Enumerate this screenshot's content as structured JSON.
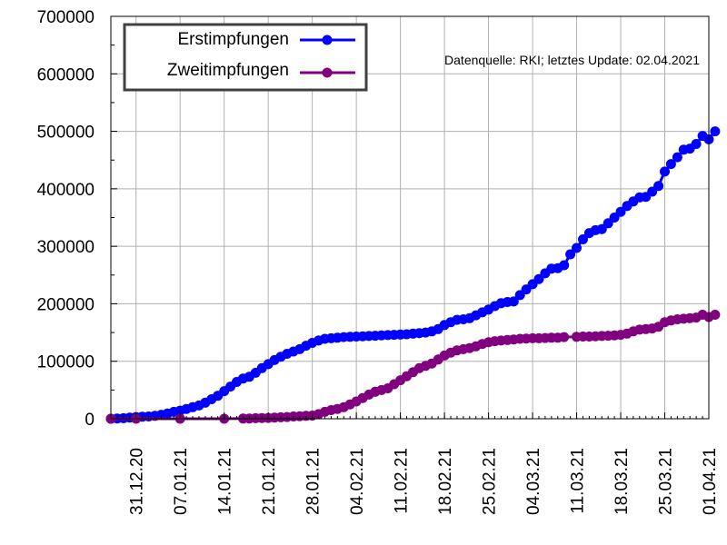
{
  "chart_data": {
    "type": "line",
    "title": "",
    "xlabel": "",
    "ylabel": "",
    "source_note": "Datenquelle: RKI; letztes Update: 02.04.2021",
    "x_start": "2020-12-27",
    "x_end": "2021-04-01",
    "ylim": [
      0,
      700000
    ],
    "y_ticks": [
      0,
      100000,
      200000,
      300000,
      400000,
      500000,
      600000,
      700000
    ],
    "y_tick_labels": [
      "0",
      "100000",
      "200000",
      "300000",
      "400000",
      "500000",
      "600000",
      "700000"
    ],
    "x_ticks": [
      "2020-12-31",
      "2021-01-07",
      "2021-01-14",
      "2021-01-21",
      "2021-01-28",
      "2021-02-04",
      "2021-02-11",
      "2021-02-18",
      "2021-02-25",
      "2021-03-04",
      "2021-03-11",
      "2021-03-18",
      "2021-03-25",
      "2021-04-01"
    ],
    "x_tick_labels": [
      "31.12.20",
      "07.01.21",
      "14.01.21",
      "21.01.21",
      "28.01.21",
      "04.02.21",
      "11.02.21",
      "18.02.21",
      "25.02.21",
      "04.03.21",
      "11.03.21",
      "18.03.21",
      "25.03.21",
      "01.04.21"
    ],
    "grid": true,
    "legend_position": "top-left",
    "series": [
      {
        "name": "Erstimpfungen",
        "color": "#0000ff",
        "points": [
          [
            "2020-12-27",
            0
          ],
          [
            "2020-12-28",
            500
          ],
          [
            "2020-12-29",
            1000
          ],
          [
            "2020-12-30",
            2000
          ],
          [
            "2020-12-31",
            3000
          ],
          [
            "2021-01-01",
            3500
          ],
          [
            "2021-01-02",
            4000
          ],
          [
            "2021-01-03",
            5000
          ],
          [
            "2021-01-04",
            7000
          ],
          [
            "2021-01-05",
            9000
          ],
          [
            "2021-01-06",
            12000
          ],
          [
            "2021-01-07",
            14000
          ],
          [
            "2021-01-08",
            17000
          ],
          [
            "2021-01-09",
            20000
          ],
          [
            "2021-01-10",
            23000
          ],
          [
            "2021-01-11",
            28000
          ],
          [
            "2021-01-12",
            34000
          ],
          [
            "2021-01-13",
            40000
          ],
          [
            "2021-01-14",
            48000
          ],
          [
            "2021-01-15",
            56000
          ],
          [
            "2021-01-16",
            64000
          ],
          [
            "2021-01-17",
            70000
          ],
          [
            "2021-01-18",
            73000
          ],
          [
            "2021-01-19",
            80000
          ],
          [
            "2021-01-20",
            88000
          ],
          [
            "2021-01-21",
            95000
          ],
          [
            "2021-01-22",
            102000
          ],
          [
            "2021-01-23",
            108000
          ],
          [
            "2021-01-24",
            113000
          ],
          [
            "2021-01-25",
            117000
          ],
          [
            "2021-01-26",
            121000
          ],
          [
            "2021-01-27",
            127000
          ],
          [
            "2021-01-28",
            132000
          ],
          [
            "2021-01-29",
            136000
          ],
          [
            "2021-01-30",
            139000
          ],
          [
            "2021-01-31",
            140000
          ],
          [
            "2021-02-01",
            141000
          ],
          [
            "2021-02-02",
            142000
          ],
          [
            "2021-02-03",
            142500
          ],
          [
            "2021-02-04",
            143000
          ],
          [
            "2021-02-05",
            143500
          ],
          [
            "2021-02-06",
            144000
          ],
          [
            "2021-02-07",
            144500
          ],
          [
            "2021-02-08",
            145000
          ],
          [
            "2021-02-09",
            145500
          ],
          [
            "2021-02-10",
            146000
          ],
          [
            "2021-02-11",
            146500
          ],
          [
            "2021-02-12",
            147000
          ],
          [
            "2021-02-13",
            148000
          ],
          [
            "2021-02-14",
            149000
          ],
          [
            "2021-02-15",
            150000
          ],
          [
            "2021-02-16",
            152000
          ],
          [
            "2021-02-17",
            156000
          ],
          [
            "2021-02-18",
            163000
          ],
          [
            "2021-02-19",
            168000
          ],
          [
            "2021-02-20",
            172000
          ],
          [
            "2021-02-21",
            173000
          ],
          [
            "2021-02-22",
            175000
          ],
          [
            "2021-02-23",
            180000
          ],
          [
            "2021-02-24",
            185000
          ],
          [
            "2021-02-25",
            190000
          ],
          [
            "2021-02-26",
            196000
          ],
          [
            "2021-02-27",
            201000
          ],
          [
            "2021-02-28",
            203000
          ],
          [
            "2021-03-01",
            204000
          ],
          [
            "2021-03-02",
            215000
          ],
          [
            "2021-03-03",
            225000
          ],
          [
            "2021-03-04",
            234000
          ],
          [
            "2021-03-05",
            243000
          ],
          [
            "2021-03-06",
            253000
          ],
          [
            "2021-03-07",
            261000
          ],
          [
            "2021-03-08",
            262000
          ],
          [
            "2021-03-09",
            267000
          ],
          [
            "2021-03-10",
            286000
          ],
          [
            "2021-03-11",
            297000
          ],
          [
            "2021-03-12",
            312000
          ],
          [
            "2021-03-13",
            323000
          ],
          [
            "2021-03-14",
            328000
          ],
          [
            "2021-03-15",
            330000
          ],
          [
            "2021-03-16",
            340000
          ],
          [
            "2021-03-17",
            350000
          ],
          [
            "2021-03-18",
            360000
          ],
          [
            "2021-03-19",
            370000
          ],
          [
            "2021-03-20",
            378000
          ],
          [
            "2021-03-21",
            385000
          ],
          [
            "2021-03-22",
            386000
          ],
          [
            "2021-03-23",
            395000
          ],
          [
            "2021-03-24",
            405000
          ],
          [
            "2021-03-25",
            430000
          ],
          [
            "2021-03-26",
            443000
          ],
          [
            "2021-03-27",
            455000
          ],
          [
            "2021-03-28",
            468000
          ],
          [
            "2021-03-29",
            470000
          ],
          [
            "2021-03-30",
            478000
          ],
          [
            "2021-03-31",
            492000
          ],
          [
            "2021-04-01",
            486000
          ],
          [
            "2021-04-02",
            500000
          ]
        ]
      },
      {
        "name": "Zweitimpfungen",
        "color": "#800080",
        "points": [
          [
            "2020-12-27",
            0
          ],
          [
            "2020-12-31",
            0
          ],
          [
            "2021-01-07",
            0
          ],
          [
            "2021-01-14",
            0
          ],
          [
            "2021-01-17",
            300
          ],
          [
            "2021-01-18",
            500
          ],
          [
            "2021-01-19",
            1000
          ],
          [
            "2021-01-20",
            1200
          ],
          [
            "2021-01-21",
            1500
          ],
          [
            "2021-01-22",
            2000
          ],
          [
            "2021-01-23",
            2500
          ],
          [
            "2021-01-24",
            3000
          ],
          [
            "2021-01-25",
            4000
          ],
          [
            "2021-01-26",
            4500
          ],
          [
            "2021-01-27",
            5000
          ],
          [
            "2021-01-28",
            5500
          ],
          [
            "2021-01-29",
            8000
          ],
          [
            "2021-01-30",
            12000
          ],
          [
            "2021-01-31",
            15000
          ],
          [
            "2021-02-01",
            17000
          ],
          [
            "2021-02-02",
            20000
          ],
          [
            "2021-02-03",
            25000
          ],
          [
            "2021-02-04",
            30000
          ],
          [
            "2021-02-05",
            36000
          ],
          [
            "2021-02-06",
            42000
          ],
          [
            "2021-02-07",
            47000
          ],
          [
            "2021-02-08",
            50000
          ],
          [
            "2021-02-09",
            53000
          ],
          [
            "2021-02-10",
            60000
          ],
          [
            "2021-02-11",
            67000
          ],
          [
            "2021-02-12",
            74000
          ],
          [
            "2021-02-13",
            81000
          ],
          [
            "2021-02-14",
            88000
          ],
          [
            "2021-02-15",
            92000
          ],
          [
            "2021-02-16",
            96000
          ],
          [
            "2021-02-17",
            103000
          ],
          [
            "2021-02-18",
            110000
          ],
          [
            "2021-02-19",
            115000
          ],
          [
            "2021-02-20",
            119000
          ],
          [
            "2021-02-21",
            121000
          ],
          [
            "2021-02-22",
            123000
          ],
          [
            "2021-02-23",
            126000
          ],
          [
            "2021-02-24",
            130000
          ],
          [
            "2021-02-25",
            133000
          ],
          [
            "2021-02-26",
            135000
          ],
          [
            "2021-02-27",
            136000
          ],
          [
            "2021-02-28",
            137000
          ],
          [
            "2021-03-01",
            138000
          ],
          [
            "2021-03-02",
            139000
          ],
          [
            "2021-03-03",
            139500
          ],
          [
            "2021-03-04",
            140000
          ],
          [
            "2021-03-05",
            140000
          ],
          [
            "2021-03-06",
            140500
          ],
          [
            "2021-03-07",
            141000
          ],
          [
            "2021-03-08",
            141000
          ],
          [
            "2021-03-09",
            142000
          ],
          [
            "2021-03-11",
            142500
          ],
          [
            "2021-03-12",
            143000
          ],
          [
            "2021-03-13",
            143000
          ],
          [
            "2021-03-14",
            143500
          ],
          [
            "2021-03-15",
            144000
          ],
          [
            "2021-03-16",
            144500
          ],
          [
            "2021-03-17",
            145000
          ],
          [
            "2021-03-18",
            146000
          ],
          [
            "2021-03-19",
            148000
          ],
          [
            "2021-03-20",
            152000
          ],
          [
            "2021-03-21",
            155000
          ],
          [
            "2021-03-22",
            156000
          ],
          [
            "2021-03-23",
            157000
          ],
          [
            "2021-03-24",
            160000
          ],
          [
            "2021-03-25",
            168000
          ],
          [
            "2021-03-26",
            171000
          ],
          [
            "2021-03-27",
            173000
          ],
          [
            "2021-03-28",
            174000
          ],
          [
            "2021-03-29",
            175000
          ],
          [
            "2021-03-30",
            176000
          ],
          [
            "2021-03-31",
            181000
          ],
          [
            "2021-04-01",
            177000
          ],
          [
            "2021-04-02",
            181000
          ]
        ]
      }
    ]
  }
}
